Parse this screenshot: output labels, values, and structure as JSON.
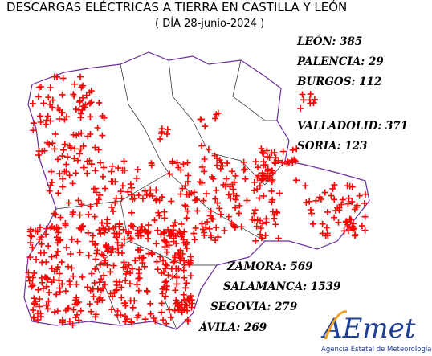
{
  "header": {
    "title": "DESCARGAS ELÉCTRICAS A TIERRA EN CASTILLA Y LEÓN",
    "subtitle": "( DÍA 28-junio-2024 )"
  },
  "provinces": [
    "LEÓN: 385",
    "PALENCIA: 29",
    "BURGOS: 112",
    "VALLADOLID: 371",
    "SORIA: 123",
    "ZAMORA: 569",
    "SALAMANCA: 1539",
    "SEGOVIA: 279",
    "ÁVILA: 269"
  ],
  "logo": {
    "name": "AEmet",
    "caption": "Agencia Estatal de Meteorología"
  }
}
